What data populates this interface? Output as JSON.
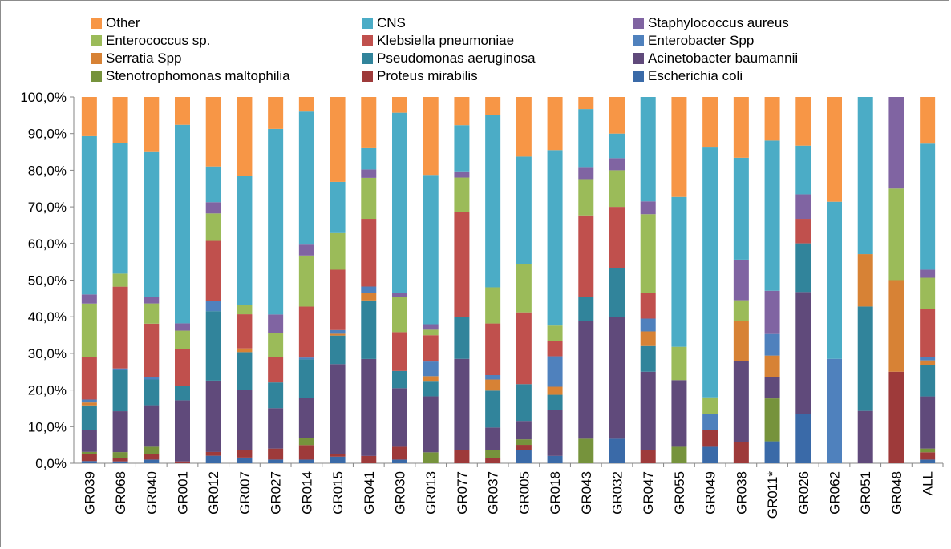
{
  "chart_data": {
    "type": "bar",
    "stacked": true,
    "percent": true,
    "title": "",
    "xlabel": "",
    "ylabel": "",
    "ylim": [
      0,
      100
    ],
    "yticks": [
      "0,0%",
      "10,0%",
      "20,0%",
      "30,0%",
      "40,0%",
      "50,0%",
      "60,0%",
      "70,0%",
      "80,0%",
      "90,0%",
      "100,0%"
    ],
    "grid": false,
    "legend_position": "top",
    "categories": [
      "GR039",
      "GR068",
      "GR040",
      "GR001",
      "GR012",
      "GR007",
      "GR027",
      "GR014",
      "GR015",
      "GR041",
      "GR030",
      "GR013",
      "GR077",
      "GR037",
      "GR005",
      "GR018",
      "GR043",
      "GR032",
      "GR047",
      "GR055",
      "GR049",
      "GR038",
      "GR011*",
      "GR026",
      "GR062",
      "GR051",
      "GR048",
      "ALL"
    ],
    "series": [
      {
        "name": "Escherichia coli",
        "color": "#3a6aa8",
        "values": [
          0.6,
          0.5,
          1.0,
          0.0,
          2.0,
          1.5,
          1.0,
          1.0,
          1.8,
          0.0,
          1.0,
          0.0,
          0.0,
          0.0,
          3.5,
          2.0,
          0.0,
          6.7,
          0.0,
          0.0,
          4.5,
          0.0,
          6.0,
          13.5,
          0.0,
          0.0,
          0.0,
          1.0
        ]
      },
      {
        "name": "Proteus mirabilis",
        "color": "#9e3a3a",
        "values": [
          1.9,
          1.0,
          1.5,
          0.5,
          1.0,
          2.0,
          3.0,
          4.0,
          0.7,
          2.0,
          3.5,
          0.0,
          3.5,
          1.5,
          1.5,
          0.0,
          0.0,
          0.0,
          3.5,
          0.0,
          4.5,
          5.8,
          0.0,
          0.0,
          0.0,
          0.0,
          25.0,
          2.0
        ]
      },
      {
        "name": "Stenotrophomonas maltophilia",
        "color": "#76933c",
        "values": [
          0.6,
          1.5,
          2.0,
          0.0,
          0.0,
          0.0,
          0.0,
          2.0,
          0.0,
          0.0,
          0.0,
          3.0,
          0.0,
          2.0,
          1.5,
          0.0,
          6.7,
          0.0,
          0.0,
          4.5,
          0.0,
          0.0,
          11.7,
          0.0,
          0.0,
          0.0,
          0.0,
          1.0
        ]
      },
      {
        "name": "Acinetobacter baumannii",
        "color": "#604a7b",
        "values": [
          5.9,
          11.0,
          11.3,
          16.7,
          19.0,
          15.8,
          11.0,
          11.0,
          24.6,
          26.5,
          16.0,
          15.3,
          25.0,
          6.2,
          5.0,
          12.5,
          32.0,
          33.3,
          21.5,
          18.2,
          0.0,
          22.0,
          5.9,
          33.3,
          0.0,
          14.3,
          0.0,
          14.2
        ]
      },
      {
        "name": "Pseudomonas aeruginosa",
        "color": "#31849b",
        "values": [
          6.8,
          11.0,
          7.0,
          4.0,
          18.5,
          10.0,
          7.0,
          10.5,
          7.8,
          16.0,
          4.7,
          4.0,
          11.5,
          10.0,
          10.0,
          4.2,
          6.7,
          13.3,
          7.0,
          0.0,
          0.0,
          0.0,
          0.0,
          13.3,
          0.0,
          28.5,
          0.0,
          8.5
        ]
      },
      {
        "name": "Serratia Spp",
        "color": "#d78235",
        "values": [
          0.8,
          0.0,
          0.0,
          0.0,
          0.0,
          1.0,
          0.0,
          0.0,
          0.5,
          2.0,
          0.0,
          1.5,
          0.0,
          3.0,
          0.0,
          2.2,
          0.0,
          0.0,
          4.0,
          0.0,
          0.0,
          11.1,
          5.8,
          0.0,
          0.0,
          14.3,
          25.0,
          1.3
        ]
      },
      {
        "name": "Enterobacter Spp",
        "color": "#4f81bd",
        "values": [
          0.8,
          0.5,
          0.7,
          0.0,
          2.7,
          0.0,
          0.0,
          0.5,
          1.0,
          1.8,
          0.0,
          4.0,
          0.0,
          1.2,
          0.0,
          8.3,
          0.0,
          0.0,
          3.5,
          0.0,
          4.5,
          0.0,
          5.9,
          0.0,
          28.5,
          0.0,
          0.0,
          1.0
        ]
      },
      {
        "name": "Klebsiella pneumoniae",
        "color": "#c0504d",
        "values": [
          11.5,
          22.0,
          14.5,
          10.0,
          16.0,
          9.0,
          7.0,
          14.0,
          16.5,
          18.5,
          10.6,
          7.2,
          28.5,
          14.0,
          19.5,
          4.2,
          22.2,
          16.7,
          7.0,
          0.0,
          0.0,
          0.0,
          0.0,
          6.7,
          0.0,
          0.0,
          0.0,
          13.0
        ]
      },
      {
        "name": "Enterococcus sp.",
        "color": "#9bbb59",
        "values": [
          14.7,
          3.5,
          5.5,
          5.0,
          7.3,
          2.5,
          6.5,
          14.0,
          10.0,
          11.2,
          9.5,
          1.5,
          9.5,
          9.8,
          13.0,
          4.2,
          9.9,
          10.0,
          21.5,
          9.1,
          4.5,
          5.6,
          0.0,
          0.0,
          0.0,
          0.0,
          25.0,
          8.5
        ]
      },
      {
        "name": "Staphylococcus aureus",
        "color": "#8064a2",
        "values": [
          2.5,
          0.0,
          1.8,
          2.0,
          3.0,
          0.0,
          5.0,
          3.0,
          0.0,
          2.3,
          1.2,
          1.5,
          1.7,
          0.0,
          0.0,
          0.0,
          3.3,
          3.3,
          3.5,
          0.0,
          0.0,
          11.1,
          11.8,
          6.7,
          0.0,
          0.0,
          25.0,
          2.2
        ]
      },
      {
        "name": "CNS",
        "color": "#4bacc6",
        "values": [
          43.2,
          35.0,
          39.4,
          54.2,
          9.5,
          34.0,
          50.5,
          36.5,
          14.0,
          5.8,
          49.2,
          40.8,
          12.6,
          46.8,
          29.3,
          47.9,
          15.8,
          6.7,
          28.5,
          40.9,
          68.2,
          27.8,
          41.0,
          13.3,
          42.9,
          42.9,
          0.0,
          34.3
        ]
      },
      {
        "name": "Other",
        "color": "#f79646",
        "values": [
          10.7,
          12.5,
          15.0,
          7.6,
          18.5,
          20.8,
          8.7,
          4.0,
          23.2,
          14.0,
          4.3,
          21.3,
          7.7,
          4.8,
          16.2,
          14.5,
          3.3,
          10.0,
          0.0,
          27.3,
          13.8,
          16.6,
          11.9,
          13.3,
          28.6,
          0.0,
          0.0,
          12.7
        ]
      }
    ],
    "legend_entries": [
      "Other",
      "CNS",
      "Staphylococcus aureus",
      "Enterococcus sp.",
      "Klebsiella pneumoniae",
      "Enterobacter Spp",
      "Serratia Spp",
      "Pseudomonas aeruginosa",
      "Acinetobacter baumannii",
      "Stenotrophomonas maltophilia",
      "Proteus mirabilis",
      "Escherichia coli"
    ]
  }
}
